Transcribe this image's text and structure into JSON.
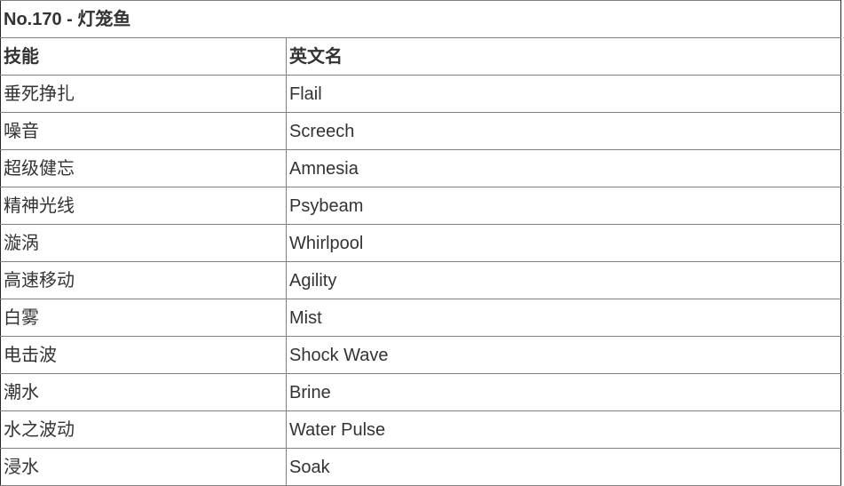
{
  "table": {
    "title": "No.170 - 灯笼鱼",
    "columns": {
      "skill": "技能",
      "english": "英文名"
    },
    "rows": [
      {
        "skill": "垂死挣扎",
        "english": "Flail"
      },
      {
        "skill": "噪音",
        "english": "Screech"
      },
      {
        "skill": "超级健忘",
        "english": "Amnesia"
      },
      {
        "skill": "精神光线",
        "english": "Psybeam"
      },
      {
        "skill": "漩涡",
        "english": "Whirlpool"
      },
      {
        "skill": "高速移动",
        "english": "Agility"
      },
      {
        "skill": "白雾",
        "english": "Mist"
      },
      {
        "skill": "电击波",
        "english": "Shock Wave"
      },
      {
        "skill": "潮水",
        "english": "Brine"
      },
      {
        "skill": "水之波动",
        "english": "Water Pulse"
      },
      {
        "skill": "浸水",
        "english": "Soak"
      }
    ],
    "colors": {
      "text": "#333333",
      "inner_border": "#808080",
      "outer_border": "#262626",
      "background": "#ffffff"
    }
  }
}
